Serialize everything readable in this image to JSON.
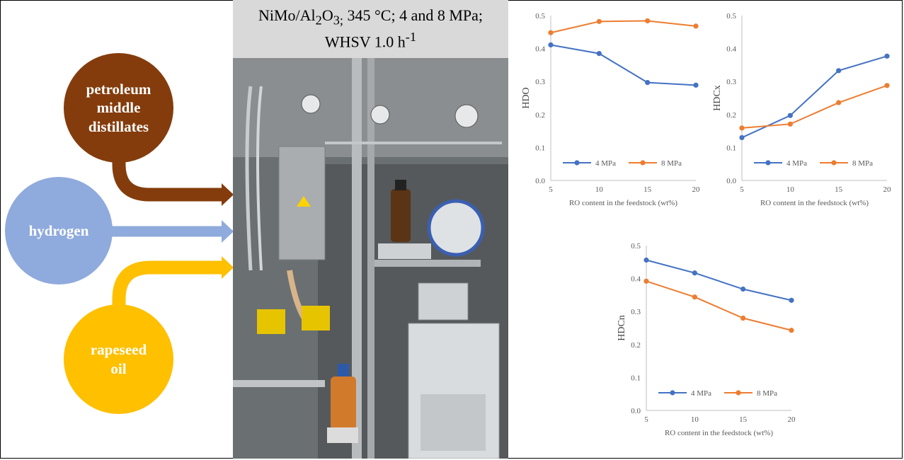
{
  "inputs": {
    "petroleum": {
      "label_lines": [
        "petroleum",
        "middle",
        "distillates"
      ],
      "color": "#843c0c"
    },
    "hydrogen": {
      "label": "hydrogen",
      "color": "#8faadc"
    },
    "rapeseed": {
      "label_lines": [
        "rapeseed",
        "oil"
      ],
      "color": "#ffc000"
    }
  },
  "conditions": {
    "line1": {
      "a": "NiMo/Al",
      "sub2": "2",
      "b": "O",
      "sub3": "3;",
      "c": " 345 °C; 4 and 8 MPa;"
    },
    "line2": {
      "a": "WHSV 1.0 h",
      "sup": "-1"
    }
  },
  "chart_data": [
    {
      "type": "line",
      "ylabel": "HDO",
      "xlabel": "RO content in the feedstock (wt%)",
      "x": [
        5,
        10,
        15,
        20
      ],
      "xticks": [
        5,
        10,
        15,
        20
      ],
      "ylim": [
        0,
        0.5
      ],
      "yticks": [
        0,
        0.1,
        0.2,
        0.3,
        0.4,
        0.5
      ],
      "ytick_labels": [
        "0.0",
        "0.1",
        "0.2",
        "0.3",
        "0.4",
        "0.5"
      ],
      "legend_position": "bottom",
      "series": [
        {
          "name": "4 MPa",
          "color": "#4472c4",
          "values": [
            0.411,
            0.385,
            0.297,
            0.289
          ]
        },
        {
          "name": "8 MPa",
          "color": "#ed7d31",
          "values": [
            0.448,
            0.482,
            0.484,
            0.468
          ]
        }
      ]
    },
    {
      "type": "line",
      "ylabel": "HDCx",
      "xlabel": "RO content in the feedstock (wt%)",
      "x": [
        5,
        10,
        15,
        20
      ],
      "xticks": [
        5,
        10,
        15,
        20
      ],
      "ylim": [
        0,
        0.5
      ],
      "yticks": [
        0,
        0.1,
        0.2,
        0.3,
        0.4,
        0.5
      ],
      "ytick_labels": [
        "0.0",
        "0.1",
        "0.2",
        "0.3",
        "0.4",
        "0.5"
      ],
      "legend_position": "bottom",
      "series": [
        {
          "name": "4 MPa",
          "color": "#4472c4",
          "values": [
            0.13,
            0.197,
            0.333,
            0.377
          ]
        },
        {
          "name": "8 MPa",
          "color": "#ed7d31",
          "values": [
            0.159,
            0.171,
            0.236,
            0.288
          ]
        }
      ]
    },
    {
      "type": "line",
      "ylabel": "HDCn",
      "xlabel": "RO content in the feedstock (wt%)",
      "x": [
        5,
        10,
        15,
        20
      ],
      "xticks": [
        5,
        10,
        15,
        20
      ],
      "ylim": [
        0,
        0.5
      ],
      "yticks": [
        0,
        0.1,
        0.2,
        0.3,
        0.4,
        0.5
      ],
      "ytick_labels": [
        "0.0",
        "0.1",
        "0.2",
        "0.3",
        "0.4",
        "0.5"
      ],
      "legend_position": "bottom",
      "series": [
        {
          "name": "4 MPa",
          "color": "#4472c4",
          "values": [
            0.456,
            0.417,
            0.368,
            0.334
          ]
        },
        {
          "name": "8 MPa",
          "color": "#ed7d31",
          "values": [
            0.392,
            0.344,
            0.28,
            0.243
          ]
        }
      ]
    }
  ]
}
